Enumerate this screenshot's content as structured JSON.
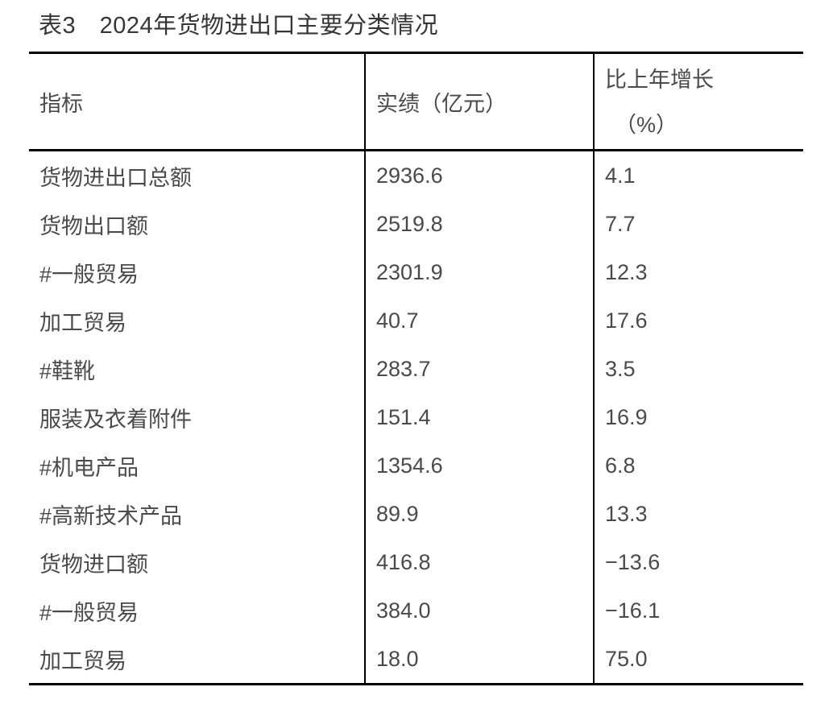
{
  "title": "表3　2024年货物进出口主要分类情况",
  "table": {
    "header": {
      "indicator": "指标",
      "value": "实绩（亿元）",
      "growth_line1": "比上年增长",
      "growth_line2": "（%）"
    },
    "rows": [
      {
        "indicator": "货物进出口总额",
        "value": "2936.6",
        "growth": "4.1"
      },
      {
        "indicator": "货物出口额",
        "value": "2519.8",
        "growth": "7.7"
      },
      {
        "indicator": "#一般贸易",
        "value": "2301.9",
        "growth": "12.3"
      },
      {
        "indicator": "加工贸易",
        "value": "40.7",
        "growth": "17.6"
      },
      {
        "indicator": "#鞋靴",
        "value": "283.7",
        "growth": "3.5"
      },
      {
        "indicator": "服装及衣着附件",
        "value": "151.4",
        "growth": "16.9"
      },
      {
        "indicator": "#机电产品",
        "value": "1354.6",
        "growth": "6.8"
      },
      {
        "indicator": "#高新技术产品",
        "value": "89.9",
        "growth": "13.3"
      },
      {
        "indicator": "货物进口额",
        "value": "416.8",
        "growth": "−13.6"
      },
      {
        "indicator": "#一般贸易",
        "value": "384.0",
        "growth": "−16.1"
      },
      {
        "indicator": "加工贸易",
        "value": "18.0",
        "growth": "75.0"
      }
    ]
  },
  "colors": {
    "background": "#ffffff",
    "text": "#4a4a4a",
    "title_text": "#363636",
    "border": "#000000"
  }
}
